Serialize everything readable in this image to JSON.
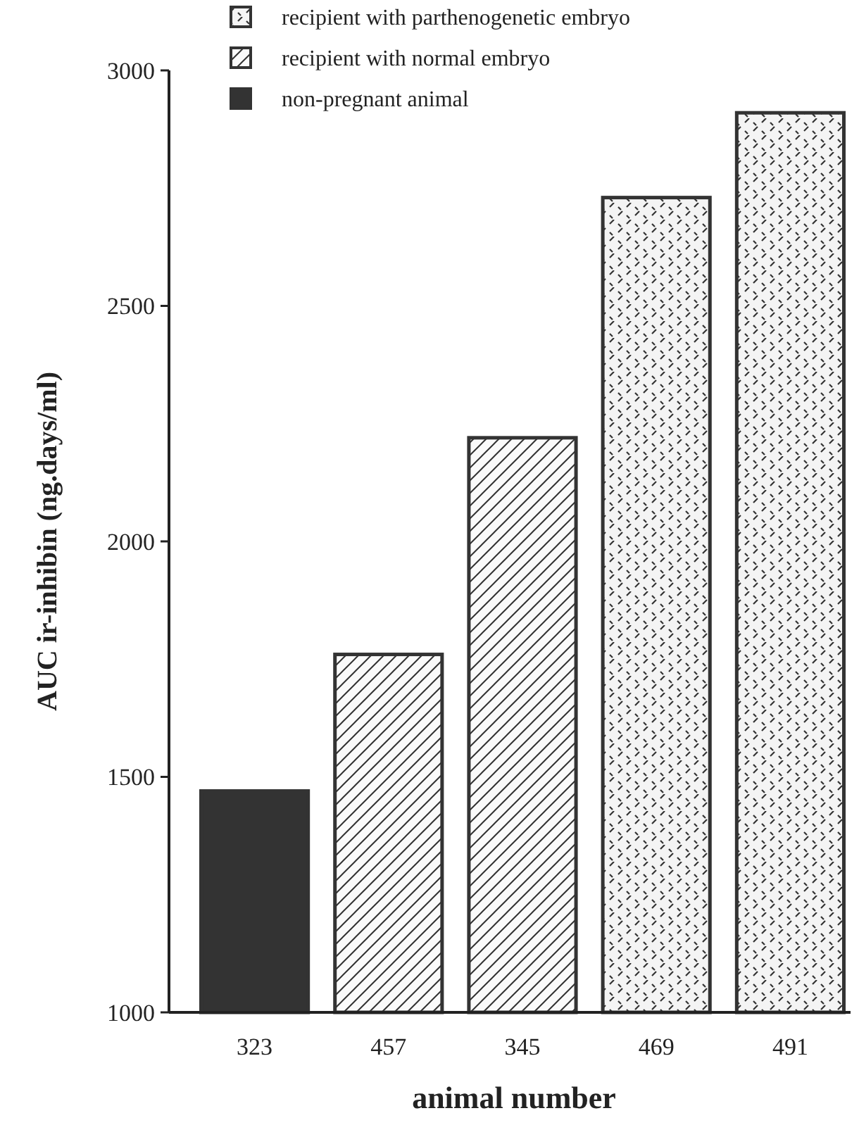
{
  "chart_data": {
    "type": "bar",
    "xlabel": "animal number",
    "ylabel": "AUC ir-inhibin (ng.days/ml)",
    "categories": [
      "323",
      "457",
      "345",
      "469",
      "491"
    ],
    "series": [
      {
        "name": "recipient with parthenogenetic embryo",
        "color": "#333333",
        "values": [
          null,
          null,
          null,
          2730,
          2910
        ]
      },
      {
        "name": "recipient with normal embryo",
        "color": "#333333",
        "values": [
          null,
          1760,
          2220,
          null,
          null
        ]
      },
      {
        "name": "non-pregnant animal",
        "color": "#333333",
        "values": [
          1470,
          null,
          null,
          null,
          null
        ]
      }
    ],
    "ylim": [
      1000,
      3000
    ],
    "yticks": [
      1000,
      1500,
      2000,
      2500,
      3000
    ],
    "legend": "top",
    "grid": false
  }
}
